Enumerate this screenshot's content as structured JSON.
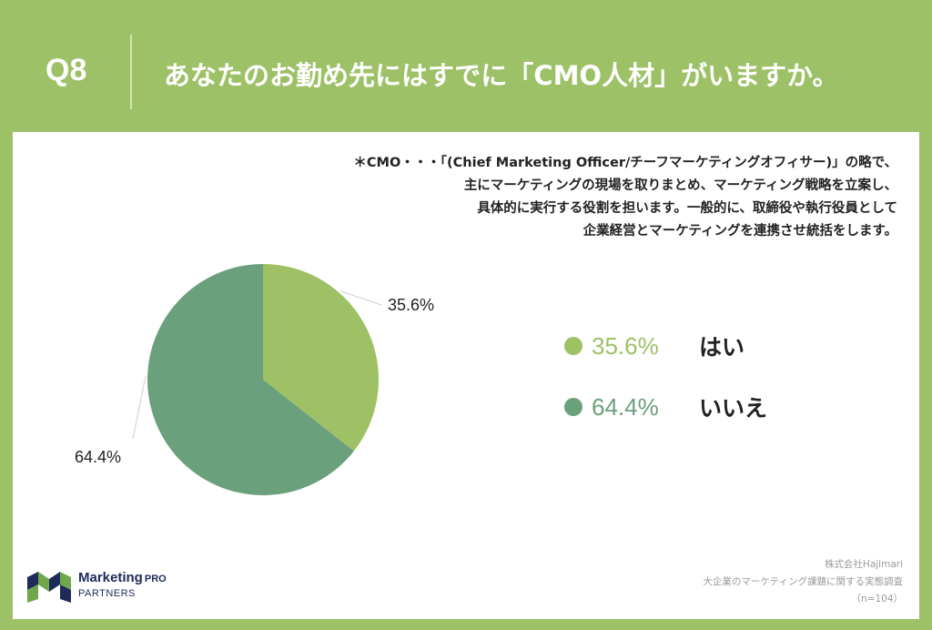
{
  "header": {
    "q_number": "Q8",
    "title": "あなたのお勤め先にはすでに「CMO人材」がいますか。"
  },
  "note": {
    "lines": [
      "＊CMO・・・「(Chief Marketing Officer/チーフマーケティングオフィサー)」の略で、",
      "主にマーケティングの現場を取りまとめ、マーケティング戦略を立案し、",
      "具体的に実行する役割を担います。一般的に、取締役や執行役員として",
      "企業経営とマーケティングを連携させ統括をします。"
    ]
  },
  "chart_data": {
    "type": "pie",
    "categories": [
      "はい",
      "いいえ"
    ],
    "values": [
      35.6,
      64.4
    ],
    "value_labels": [
      "35.6%",
      "64.4%"
    ],
    "colors": [
      "#9dc164",
      "#6aa07c"
    ],
    "legend_placement": "right"
  },
  "logo": {
    "name": "Marketing",
    "suffix": "PRO",
    "sub": "PARTNERS"
  },
  "source": {
    "lines": [
      "株式会社Hajimari",
      "大企業のマーケティング課題に関する実態調査",
      "（n=104）"
    ]
  }
}
